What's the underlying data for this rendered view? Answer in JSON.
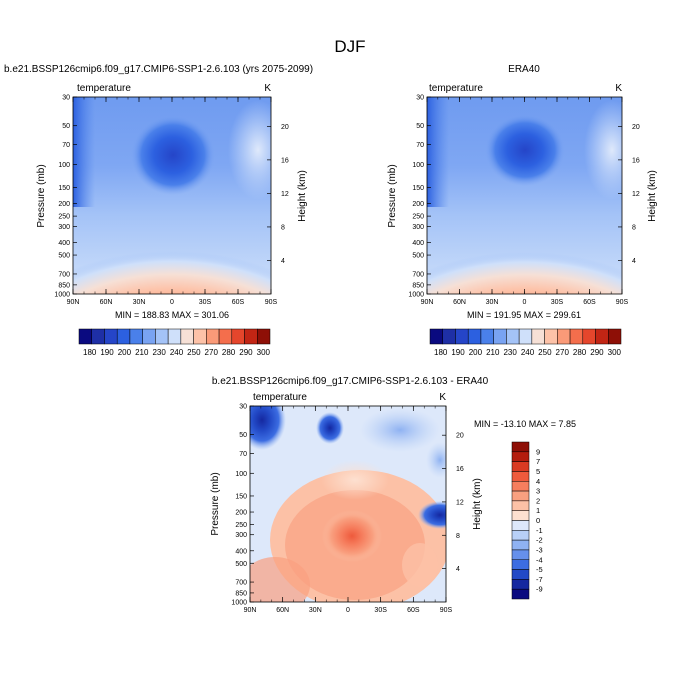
{
  "figure": {
    "title": "DJF",
    "type": "contour panels"
  },
  "chart_data": [
    {
      "type": "heatmap",
      "title": "b.e21.BSSP126cmip6.f09_g17.CMIP6-SSP1-2.6.103 (yrs 2075-2099)",
      "variable_label": "temperature",
      "units": "K",
      "ylabel": "Pressure (mb)",
      "ylabel_right": "Height (km)",
      "x_ticks": [
        "90N",
        "60N",
        "30N",
        "0",
        "30S",
        "60S",
        "90S"
      ],
      "y_ticks": [
        "30",
        "50",
        "70",
        "100",
        "150",
        "200",
        "250",
        "300",
        "400",
        "500",
        "700",
        "850",
        "1000"
      ],
      "y_right_ticks": [
        "20",
        "16",
        "12",
        "8",
        "4"
      ],
      "stats": "MIN = 188.83   MAX = 301.06",
      "min": 188.83,
      "max": 301.06,
      "colorbar_labels": [
        "180",
        "190",
        "200",
        "210",
        "230",
        "240",
        "250",
        "270",
        "280",
        "290",
        "300"
      ],
      "colorbar_colors": [
        "#0a0a80",
        "#1e2fa6",
        "#2545c8",
        "#2c60e0",
        "#4a80ea",
        "#79a3f2",
        "#a4c3f7",
        "#cfe0fa",
        "#f6e0d6",
        "#fdc2a8",
        "#fa9a78",
        "#f46e4c",
        "#e5462c",
        "#c22514",
        "#8e0f06"
      ]
    },
    {
      "type": "heatmap",
      "title": "ERA40",
      "variable_label": "temperature",
      "units": "K",
      "ylabel": "Pressure (mb)",
      "ylabel_right": "Height (km)",
      "x_ticks": [
        "90N",
        "60N",
        "30N",
        "0",
        "30S",
        "60S",
        "90S"
      ],
      "y_ticks": [
        "30",
        "50",
        "70",
        "100",
        "150",
        "200",
        "250",
        "300",
        "400",
        "500",
        "700",
        "850",
        "1000"
      ],
      "y_right_ticks": [
        "20",
        "16",
        "12",
        "8",
        "4"
      ],
      "stats": "MIN = 191.95   MAX = 299.61",
      "min": 191.95,
      "max": 299.61,
      "colorbar_labels": [
        "180",
        "190",
        "200",
        "210",
        "230",
        "240",
        "250",
        "270",
        "280",
        "290",
        "300"
      ],
      "colorbar_colors": [
        "#0a0a80",
        "#1e2fa6",
        "#2545c8",
        "#2c60e0",
        "#4a80ea",
        "#79a3f2",
        "#a4c3f7",
        "#cfe0fa",
        "#f6e0d6",
        "#fdc2a8",
        "#fa9a78",
        "#f46e4c",
        "#e5462c",
        "#c22514",
        "#8e0f06"
      ]
    },
    {
      "type": "heatmap",
      "title": "b.e21.BSSP126cmip6.f09_g17.CMIP6-SSP1-2.6.103 - ERA40",
      "variable_label": "temperature",
      "units": "K",
      "ylabel": "Pressure (mb)",
      "ylabel_right": "Height (km)",
      "x_ticks": [
        "90N",
        "60N",
        "30N",
        "0",
        "30S",
        "60S",
        "90S"
      ],
      "y_ticks": [
        "30",
        "50",
        "70",
        "100",
        "150",
        "200",
        "250",
        "300",
        "400",
        "500",
        "700",
        "850",
        "1000"
      ],
      "y_right_ticks": [
        "20",
        "16",
        "12",
        "8",
        "4"
      ],
      "stats": "MIN = -13.10   MAX =   7.85",
      "min": -13.1,
      "max": 7.85,
      "colorbar_labels": [
        "9",
        "7",
        "5",
        "4",
        "3",
        "2",
        "1",
        "0",
        "-1",
        "-2",
        "-3",
        "-4",
        "-5",
        "-7",
        "-9"
      ],
      "colorbar_colors": [
        "#8e0f06",
        "#b41d0e",
        "#d93a22",
        "#ee5a3c",
        "#f67e5e",
        "#f9a080",
        "#fcc1a6",
        "#fde0d0",
        "#dde8fa",
        "#b8d0f7",
        "#8fb2f2",
        "#6690eb",
        "#3c6de2",
        "#2249c6",
        "#1528a0",
        "#0a0a80"
      ]
    }
  ]
}
